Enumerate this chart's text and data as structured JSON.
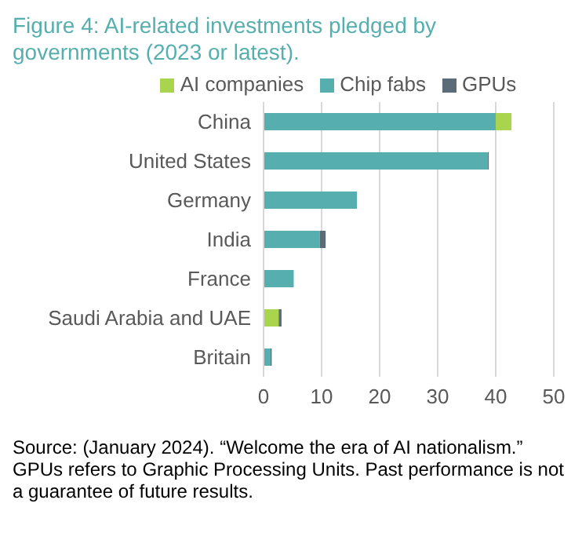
{
  "chart_data": {
    "type": "bar",
    "orientation": "horizontal",
    "stacked": true,
    "title": "Figure 4: AI-related investments pledged by governments (2023 or latest).",
    "categories": [
      "China",
      "United States",
      "Germany",
      "India",
      "France",
      "Saudi Arabia and UAE",
      "Britain"
    ],
    "series": [
      {
        "name": "Chip fabs",
        "color": "#56afae",
        "values": [
          40,
          38.6,
          16.1,
          9.7,
          5.2,
          0,
          1.2
        ]
      },
      {
        "name": "AI companies",
        "color": "#a8d44e",
        "values": [
          2.7,
          0,
          0,
          0,
          0,
          2.6,
          0
        ]
      },
      {
        "name": "GPUs",
        "color": "#5b6b77",
        "values": [
          0,
          0.2,
          0,
          1,
          0,
          0.5,
          0.2
        ]
      }
    ],
    "xlim": [
      0,
      50
    ],
    "xticks": [
      0,
      10,
      20,
      30,
      40,
      50
    ],
    "grid": "x",
    "legend": "top",
    "annotations": [
      "Source: (January 2024). “Welcome the era of AI nationalism.” GPUs refers to Graphic Processing Units. Past performance is not a guarantee of future results."
    ]
  }
}
